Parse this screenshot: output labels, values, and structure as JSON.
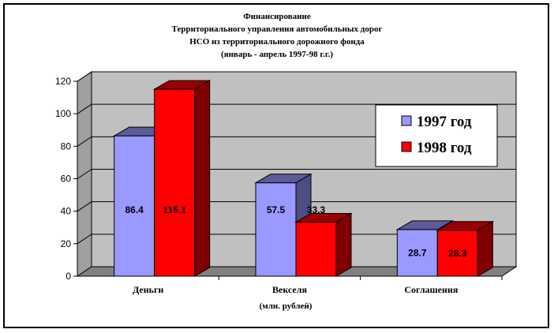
{
  "chart_data": {
    "type": "bar",
    "title_lines": [
      "Финансирование",
      "Территориального управления автомобильных дорог",
      "НСО из территориального дорожного фонда",
      "(январь - апрель 1997-98 г.г.)"
    ],
    "categories": [
      "Деньги",
      "Векселя",
      "Соглашения"
    ],
    "series": [
      {
        "name": "1997 год",
        "values": [
          86.4,
          57.5,
          28.7
        ],
        "color": "#9999ff"
      },
      {
        "name": "1998 год",
        "values": [
          115.1,
          33.3,
          28.3
        ],
        "color": "#ff0000"
      }
    ],
    "xlabel": "(млн. рублей)",
    "ylabel": "",
    "ylim": [
      0,
      120
    ],
    "yticks": [
      0,
      20,
      40,
      60,
      80,
      100,
      120
    ],
    "grid": true,
    "legend_position": "top-right",
    "colors": {
      "wall": "#c0c0c0",
      "background": "#ffffff"
    }
  }
}
